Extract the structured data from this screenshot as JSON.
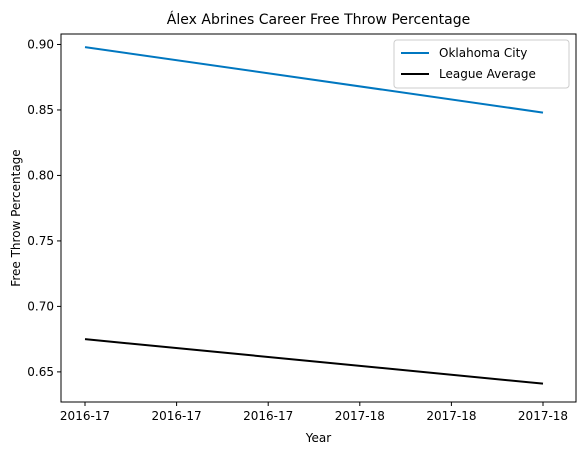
{
  "chart_data": {
    "type": "line",
    "title": "Álex Abrines Career Free Throw Percentage",
    "xlabel": "Year",
    "ylabel": "Free Throw Percentage",
    "x": [
      "2016-17",
      "2016-17",
      "2016-17",
      "2017-18",
      "2017-18",
      "2017-18"
    ],
    "ylim": [
      0.627,
      0.908
    ],
    "yticks": [
      0.65,
      0.7,
      0.75,
      0.8,
      0.85,
      0.9
    ],
    "ytick_labels": [
      "0.65",
      "0.70",
      "0.75",
      "0.80",
      "0.85",
      "0.90"
    ],
    "grid": false,
    "legend_position": "top-right",
    "series": [
      {
        "name": "Oklahoma City",
        "color": "#0077c0",
        "start": 0.898,
        "end": 0.848
      },
      {
        "name": "League Average",
        "color": "#000000",
        "start": 0.675,
        "end": 0.641
      }
    ]
  }
}
